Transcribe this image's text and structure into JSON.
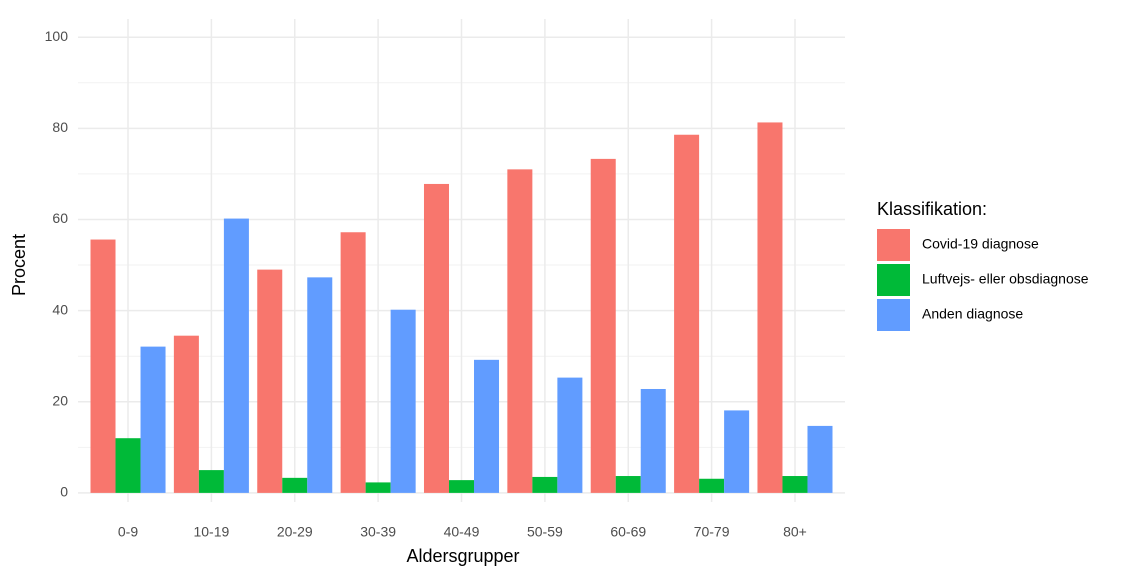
{
  "chart_data": {
    "type": "bar",
    "x_label": "Aldersgrupper",
    "y_label": "Procent",
    "legend_title": "Klassifikation:",
    "legend_position": "right",
    "categories": [
      "0-9",
      "10-19",
      "20-29",
      "30-39",
      "40-49",
      "50-59",
      "60-69",
      "70-79",
      "80+"
    ],
    "series": [
      {
        "name": "Covid-19 diagnose",
        "color": "#F8766D",
        "values": [
          55.6,
          34.5,
          49,
          57.2,
          67.8,
          71,
          73.3,
          78.6,
          81.3
        ]
      },
      {
        "name": "Luftvejs- eller obsdiagnose",
        "color": "#00BA38",
        "values": [
          12,
          5,
          3.3,
          2.3,
          2.8,
          3.5,
          3.7,
          3.1,
          3.7
        ]
      },
      {
        "name": "Anden diagnose",
        "color": "#619CFF",
        "values": [
          32.1,
          60.2,
          47.3,
          40.2,
          29.2,
          25.3,
          22.8,
          18.1,
          14.7
        ]
      }
    ],
    "ylim": [
      -2,
      104
    ],
    "yticks": [
      0,
      20,
      40,
      60,
      80,
      100
    ],
    "minor_yticks": [
      10,
      30,
      50,
      70,
      90
    ],
    "grid": true
  }
}
